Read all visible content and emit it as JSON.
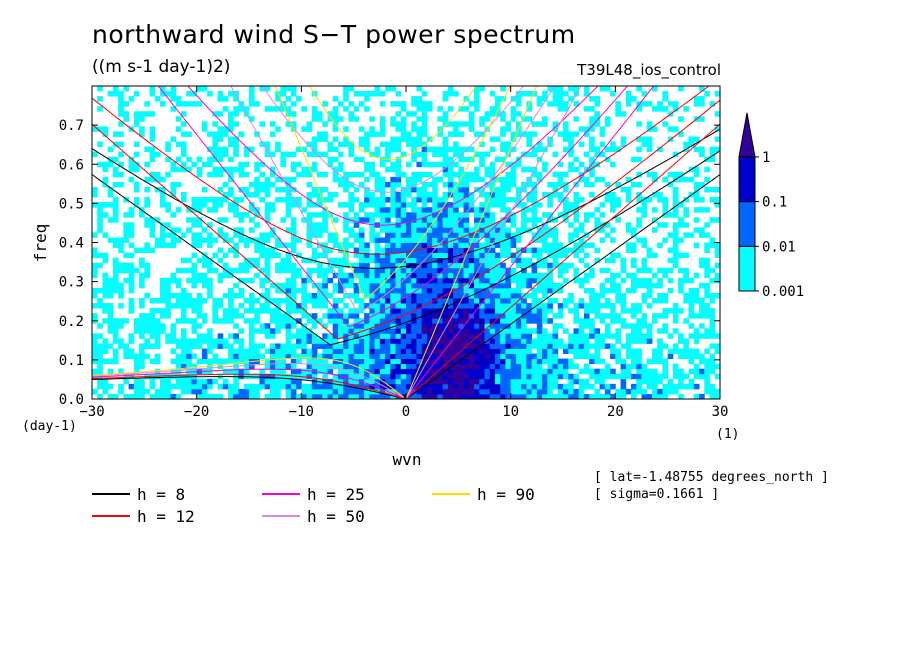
{
  "header": {
    "title": "northward wind S−T power spectrum",
    "units": "((m s-1 day-1)2)",
    "run_name": "T39L48_ios_control"
  },
  "meta": {
    "lat": "[ lat=-1.48755 degrees_north ]",
    "sigma": "[ sigma=0.1661 ]"
  },
  "chart_data": {
    "type": "heatmap",
    "xlabel": "wvn",
    "ylabel": "freq",
    "x_unit_label": "(1)",
    "y_unit_label": "(day-1)",
    "xlim": [
      -30,
      30
    ],
    "ylim": [
      0,
      0.8
    ],
    "xticks": [
      -30,
      -20,
      -10,
      0,
      10,
      20,
      30
    ],
    "xtick_labels": [
      "−30",
      "−20",
      "−10",
      "0",
      "10",
      "20",
      "30"
    ],
    "yticks": [
      0,
      0.1,
      0.2,
      0.3,
      0.4,
      0.5,
      0.6,
      0.7
    ],
    "ytick_labels": [
      "0.0",
      "0.1",
      "0.2",
      "0.3",
      "0.4",
      "0.5",
      "0.6",
      "0.7"
    ],
    "colorbar": {
      "levels": [
        0.001,
        0.01,
        0.1,
        1
      ],
      "labels": [
        "0.001",
        "0.01",
        "0.1",
        "1"
      ],
      "colors": [
        "#00ffff",
        "#0066ff",
        "#0000cc",
        "#330099"
      ]
    },
    "series": [
      {
        "name": "h =  8",
        "h": 8,
        "color": "#000000"
      },
      {
        "name": "h = 12",
        "h": 12,
        "color": "#ff0000"
      },
      {
        "name": "h = 25",
        "h": 25,
        "color": "#ff00cc"
      },
      {
        "name": "h = 50",
        "h": 50,
        "color": "#dd88dd"
      },
      {
        "name": "h = 90",
        "h": 90,
        "color": "#ffdd00"
      }
    ]
  }
}
